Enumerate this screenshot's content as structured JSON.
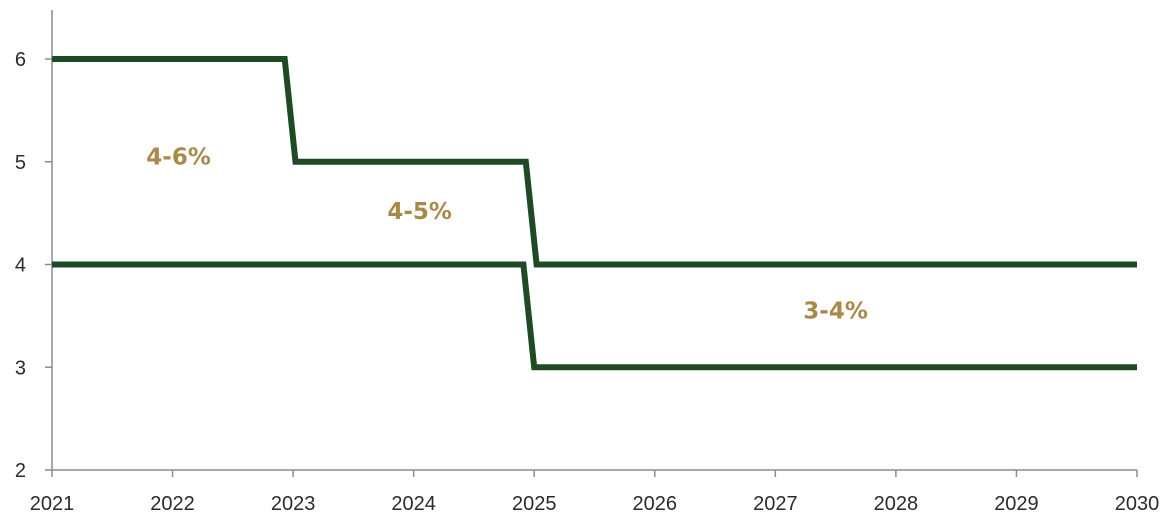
{
  "chart_data": {
    "type": "line",
    "title": "",
    "xlabel": "",
    "ylabel": "",
    "xlim": [
      2021,
      2030
    ],
    "ylim": [
      2,
      6
    ],
    "x_ticks": [
      "2021",
      "2022",
      "2023",
      "2024",
      "2025",
      "2026",
      "2027",
      "2028",
      "2029",
      "2030"
    ],
    "y_ticks": [
      "2",
      "3",
      "4",
      "5",
      "6"
    ],
    "grid": false,
    "legend": "none",
    "colors": {
      "series": "#1e4a26",
      "annotation": "#a8894a",
      "axis": "#8c8c8c",
      "tick_text": "#2b2b2b"
    },
    "series": [
      {
        "points": [
          {
            "x": 2021,
            "y": 6
          },
          {
            "x": 2022.93,
            "y": 6
          },
          {
            "x": 2023.02,
            "y": 5
          },
          {
            "x": 2024.93,
            "y": 5
          },
          {
            "x": 2025.02,
            "y": 4
          },
          {
            "x": 2030,
            "y": 4
          }
        ]
      },
      {
        "points": [
          {
            "x": 2021,
            "y": 4
          },
          {
            "x": 2024.91,
            "y": 4
          },
          {
            "x": 2025.0,
            "y": 3
          },
          {
            "x": 2030,
            "y": 3
          }
        ]
      }
    ],
    "annotations": [
      {
        "text": "4-6%",
        "x": 2022.05,
        "y": 5.05
      },
      {
        "text": "4-5%",
        "x": 2024.05,
        "y": 4.52
      },
      {
        "text": "3-4%",
        "x": 2027.5,
        "y": 3.55
      }
    ]
  }
}
